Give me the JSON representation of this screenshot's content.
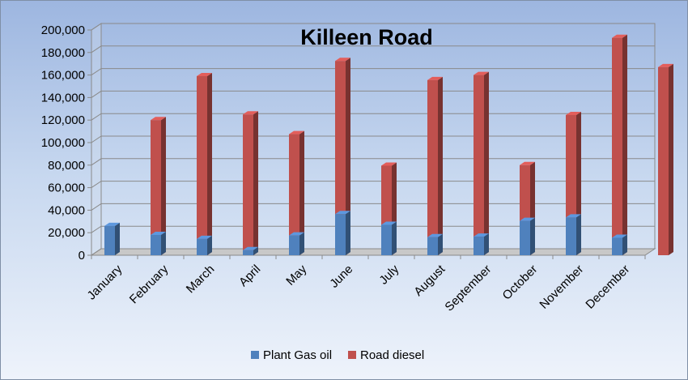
{
  "chart_data": {
    "type": "bar",
    "title": "Killeen Road",
    "categories": [
      "January",
      "February",
      "March",
      "April",
      "May",
      "June",
      "July",
      "August",
      "September",
      "October",
      "November",
      "December"
    ],
    "series": [
      {
        "name": "Plant Gas oil",
        "color": "#4f81bd",
        "values": [
          26000,
          18000,
          14500,
          4500,
          17500,
          36500,
          27000,
          16000,
          16500,
          30500,
          33500,
          15500
        ]
      },
      {
        "name": "Road diesel",
        "color": "#c0504d",
        "values": [
          120000,
          159000,
          125000,
          107500,
          172500,
          79500,
          155500,
          160000,
          80000,
          124500,
          193000,
          167000
        ]
      }
    ],
    "y_ticks": [
      "0",
      "20,000",
      "40,000",
      "60,000",
      "80,000",
      "100,000",
      "120,000",
      "140,000",
      "160,000",
      "180,000",
      "200,000"
    ],
    "ylim": [
      0,
      200000
    ],
    "grid": true,
    "legend": "bottom"
  }
}
